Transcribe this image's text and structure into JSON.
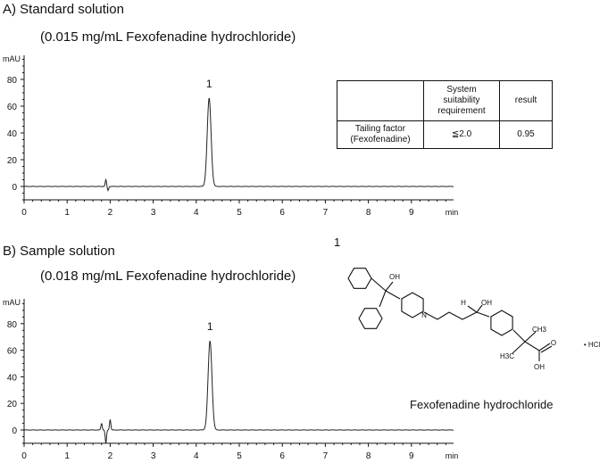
{
  "chart_data": [
    {
      "type": "line",
      "label": "A) Standard solution",
      "subtitle": "(0.015 mg/mL Fexofenadine hydrochloride)",
      "ylabel": "mAU",
      "xlabel": "min",
      "xlim": [
        0,
        10
      ],
      "ylim": [
        -10,
        100
      ],
      "xticks": [
        "0",
        "1",
        "2",
        "3",
        "4",
        "5",
        "6",
        "7",
        "8",
        "9"
      ],
      "yticks": [
        "0",
        "20",
        "40",
        "60",
        "80"
      ],
      "peaks": [
        {
          "label": "1",
          "rt": 4.3,
          "height": 66
        }
      ],
      "disturbances": [
        {
          "x": 1.9,
          "y": 5
        },
        {
          "x": 1.95,
          "y": -3
        }
      ]
    },
    {
      "type": "line",
      "label": "B) Sample solution",
      "subtitle": "(0.018 mg/mL Fexofenadine hydrochloride)",
      "ylabel": "mAU",
      "xlabel": "min",
      "xlim": [
        0,
        10
      ],
      "ylim": [
        -10,
        100
      ],
      "xticks": [
        "0",
        "1",
        "2",
        "3",
        "4",
        "5",
        "6",
        "7",
        "8",
        "9"
      ],
      "yticks": [
        "0",
        "20",
        "40",
        "60",
        "80"
      ],
      "peaks": [
        {
          "label": "1",
          "rt": 4.32,
          "height": 67
        }
      ],
      "disturbances": [
        {
          "x": 1.8,
          "y": 5
        },
        {
          "x": 1.9,
          "y": -10
        },
        {
          "x": 2.0,
          "y": 8
        }
      ]
    }
  ],
  "table": {
    "header": [
      "",
      "System suitability requirement",
      "result"
    ],
    "rows": [
      [
        "Tailing factor (Fexofenadine)",
        "≦2.0",
        "0.95"
      ]
    ]
  },
  "structure": {
    "number": "1",
    "caption": "Fexofenadine hydrochloride",
    "labels": {
      "oh1": "OH",
      "n": "N",
      "h": "H",
      "oh2": "OH",
      "ch3": "CH3",
      "h3c": "H3C",
      "o": "O",
      "oh3": "OH",
      "hcl": "• HCl"
    }
  }
}
